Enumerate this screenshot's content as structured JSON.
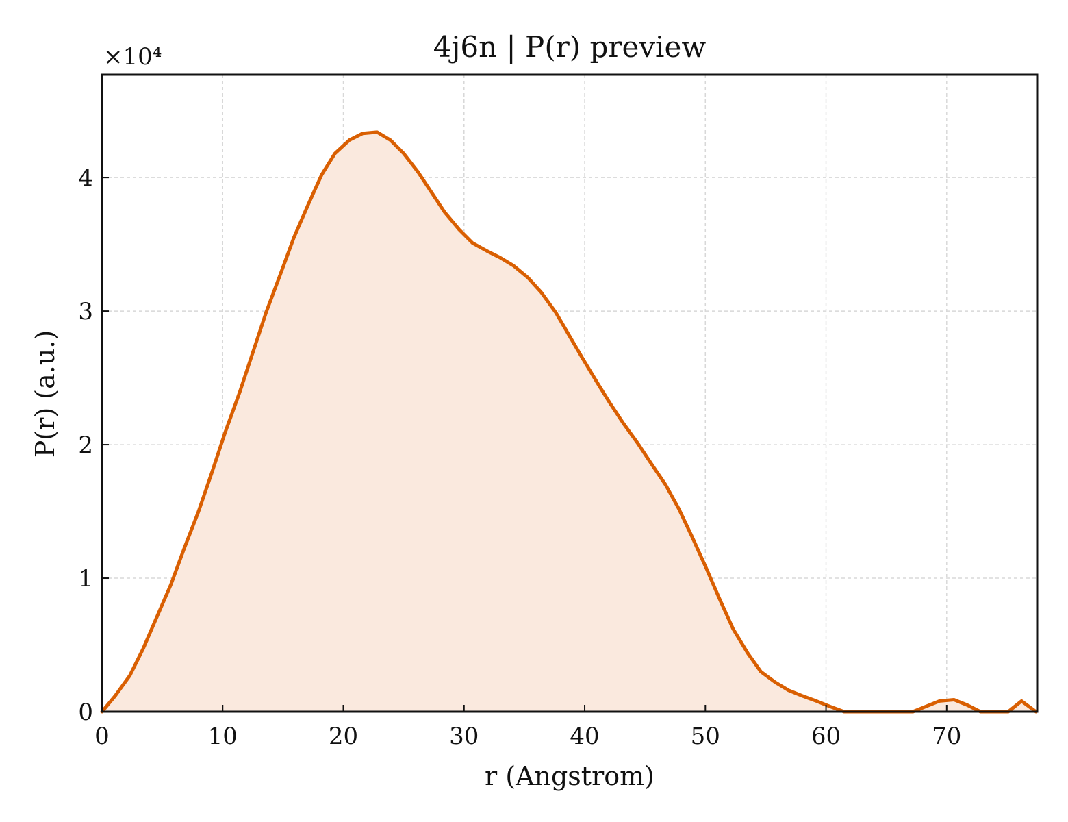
{
  "chart_data": {
    "type": "area",
    "title": "4j6n | P(r) preview",
    "xlabel": "r (Angstrom)",
    "ylabel": "P(r) (a.u.)",
    "y_multiplier_label": "×10⁴",
    "xlim": [
      0,
      77.5
    ],
    "ylim": [
      0,
      4.77
    ],
    "x_ticks": [
      0,
      10,
      20,
      30,
      40,
      50,
      60,
      70
    ],
    "y_ticks": [
      0,
      1,
      2,
      3,
      4
    ],
    "x_tick_labels": [
      "0",
      "10",
      "20",
      "30",
      "40",
      "50",
      "60",
      "70"
    ],
    "y_tick_labels": [
      "0",
      "1",
      "2",
      "3",
      "4"
    ],
    "grid": true,
    "legend": "none",
    "series": [
      {
        "color": "#d95f02",
        "fill_color": "#fae9de",
        "x": [
          0,
          1.1,
          2.3,
          3.4,
          4.5,
          5.7,
          6.8,
          8.0,
          9.1,
          10.2,
          11.4,
          12.5,
          13.6,
          14.8,
          15.9,
          17.1,
          18.2,
          19.3,
          20.5,
          21.6,
          22.8,
          23.9,
          25.0,
          26.2,
          27.3,
          28.4,
          29.6,
          30.7,
          31.9,
          33.0,
          34.1,
          35.3,
          36.4,
          37.6,
          38.7,
          39.8,
          41.0,
          42.1,
          43.2,
          44.4,
          45.5,
          46.7,
          47.8,
          48.9,
          50.1,
          51.2,
          52.3,
          53.5,
          54.6,
          55.8,
          56.9,
          58.0,
          59.2,
          60.3,
          61.5,
          62.6,
          63.7,
          64.9,
          66.0,
          67.2,
          68.3,
          69.4,
          70.6,
          71.7,
          72.8,
          74.0,
          75.1,
          76.2,
          77.4
        ],
        "y": [
          0,
          0.12,
          0.27,
          0.47,
          0.7,
          0.95,
          1.22,
          1.5,
          1.79,
          2.09,
          2.39,
          2.69,
          2.99,
          3.28,
          3.55,
          3.8,
          4.02,
          4.18,
          4.28,
          4.33,
          4.34,
          4.28,
          4.18,
          4.04,
          3.89,
          3.74,
          3.61,
          3.51,
          3.45,
          3.4,
          3.34,
          3.25,
          3.14,
          2.99,
          2.82,
          2.65,
          2.47,
          2.31,
          2.16,
          2.01,
          1.86,
          1.7,
          1.52,
          1.31,
          1.07,
          0.84,
          0.62,
          0.44,
          0.3,
          0.22,
          0.16,
          0.12,
          0.08,
          0.04,
          0.0,
          0.0,
          0.0,
          0.0,
          0.0,
          0.0,
          0.04,
          0.08,
          0.09,
          0.05,
          0.0,
          0.0,
          0.0,
          0.08,
          0.0
        ]
      }
    ]
  }
}
